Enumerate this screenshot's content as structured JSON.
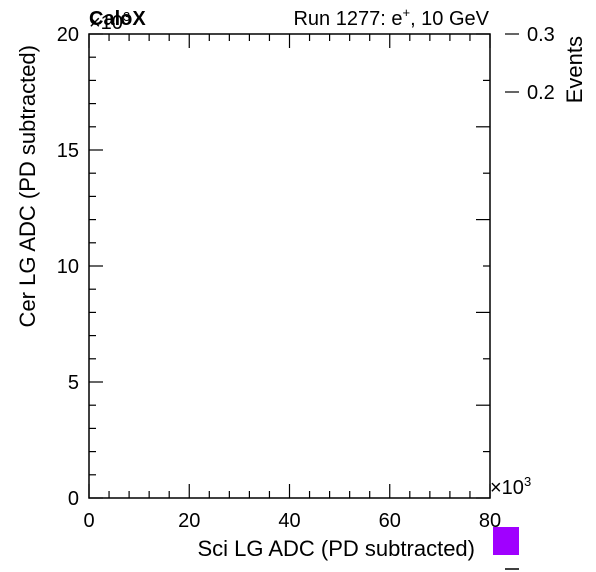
{
  "header": {
    "experiment": "CaloX",
    "run_prefix": "Run 1277: e",
    "run_sup": "+",
    "run_suffix": ", 10 GeV"
  },
  "chart_data": {
    "type": "heatmap",
    "title": "",
    "xlabel": "Sci LG ADC (PD subtracted)",
    "ylabel": "Cer LG ADC (PD subtracted)",
    "zlabel": "Events",
    "xlim": [
      0,
      80
    ],
    "ylim": [
      0,
      20
    ],
    "zlim": [
      0,
      0.3
    ],
    "x_ticks": [
      "0",
      "20",
      "40",
      "60",
      "80"
    ],
    "y_ticks": [
      "0",
      "5",
      "10",
      "15",
      "20"
    ],
    "z_ticks": [
      "0.2",
      "0.3"
    ],
    "x_multiplier": {
      "base": "×10",
      "exp": "3"
    },
    "y_multiplier": {
      "base": "×10",
      "exp": "3"
    },
    "z_scale": "log",
    "palette_color": "#a000ff",
    "values": []
  }
}
